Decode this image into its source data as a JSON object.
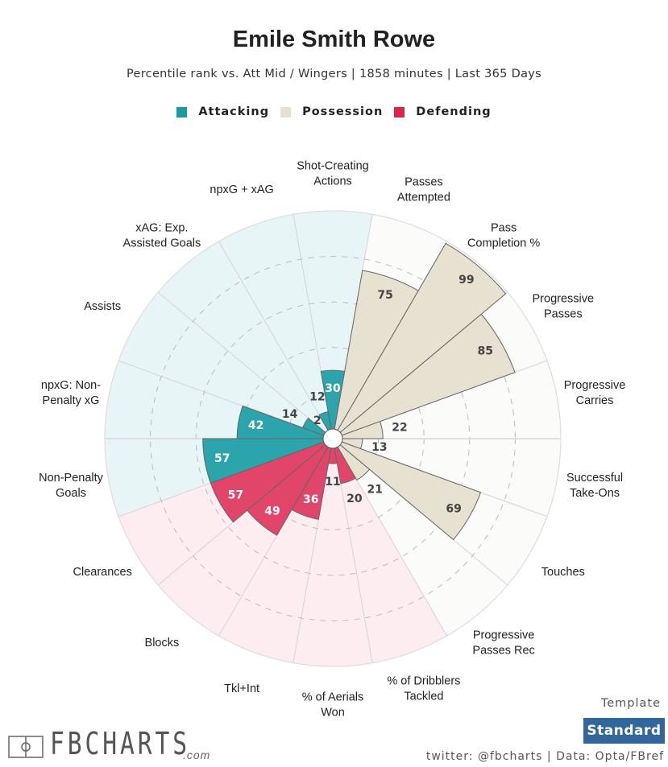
{
  "header": {
    "title": "Emile Smith Rowe",
    "subtitle": "Percentile rank vs. Att Mid / Wingers | 1858 minutes | Last 365 Days"
  },
  "legend": [
    {
      "label": "Attacking",
      "color": "#1a9ba1"
    },
    {
      "label": "Possession",
      "color": "#e6e0cf"
    },
    {
      "label": "Defending",
      "color": "#e0234e"
    }
  ],
  "footer": {
    "template_label": "Template",
    "template_value": "Standard",
    "credits": "twitter: @fbcharts | Data: Opta/FBref",
    "logo_text": "FBCHARTS",
    "logo_suffix": ".com"
  },
  "chart_data": {
    "type": "polar-bar",
    "title": "Emile Smith Rowe",
    "subtitle": "Percentile rank vs. Att Mid / Wingers | 1858 minutes | Last 365 Days",
    "rlim": [
      0,
      100
    ],
    "grid_rings": [
      20,
      40,
      60,
      80
    ],
    "categories": [
      {
        "label": [
          "Shot-Creating",
          "Actions"
        ],
        "value": 30,
        "group": "Attacking"
      },
      {
        "label": [
          "Passes",
          "Attempted"
        ],
        "value": 75,
        "group": "Possession"
      },
      {
        "label": [
          "Pass",
          "Completion %"
        ],
        "value": 99,
        "group": "Possession"
      },
      {
        "label": [
          "Progressive",
          "Passes"
        ],
        "value": 85,
        "group": "Possession"
      },
      {
        "label": [
          "Progressive",
          "Carries"
        ],
        "value": 22,
        "group": "Possession"
      },
      {
        "label": [
          "Successful",
          "Take-Ons"
        ],
        "value": 13,
        "group": "Possession"
      },
      {
        "label": [
          "Touches"
        ],
        "value": 69,
        "group": "Possession"
      },
      {
        "label": [
          "Progressive",
          "Passes Rec"
        ],
        "value": 21,
        "group": "Possession"
      },
      {
        "label": [
          "% of Dribblers",
          "Tackled"
        ],
        "value": 20,
        "group": "Defending"
      },
      {
        "label": [
          "% of Aerials",
          "Won"
        ],
        "value": 11,
        "group": "Defending"
      },
      {
        "label": [
          "Tkl+Int"
        ],
        "value": 36,
        "group": "Defending"
      },
      {
        "label": [
          "Blocks"
        ],
        "value": 49,
        "group": "Defending"
      },
      {
        "label": [
          "Clearances"
        ],
        "value": 57,
        "group": "Defending"
      },
      {
        "label": [
          "Non-Penalty",
          "Goals"
        ],
        "value": 57,
        "group": "Attacking"
      },
      {
        "label": [
          "npxG: Non-",
          "Penalty xG"
        ],
        "value": 42,
        "group": "Attacking"
      },
      {
        "label": [
          "Assists"
        ],
        "value": 14,
        "group": "Attacking"
      },
      {
        "label": [
          "xAG: Exp.",
          "Assisted Goals"
        ],
        "value": 2,
        "group": "Attacking"
      },
      {
        "label": [
          "npxG + xAG"
        ],
        "value": 12,
        "group": "Attacking"
      }
    ],
    "group_colors": {
      "Attacking": {
        "bar": "#2ba5ab",
        "bg": "#e8f5f6",
        "text": "#ffffff"
      },
      "Possession": {
        "bar": "#e6e1d1",
        "bg": "#fbfbfa",
        "text": "#444444"
      },
      "Defending": {
        "bar": "#e2456a",
        "bg": "#fdecf0",
        "text": "#ffffff"
      }
    }
  }
}
